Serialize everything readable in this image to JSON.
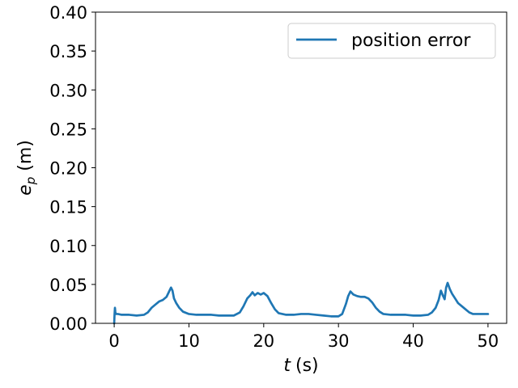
{
  "chart_data": {
    "type": "line",
    "xlabel_var": "t",
    "xlabel_unit": "(s)",
    "ylabel_var": "e",
    "ylabel_sub": "p",
    "ylabel_unit": "(m)",
    "xlim": [
      -2.5,
      52.5
    ],
    "ylim": [
      0.0,
      0.4
    ],
    "xticks": [
      0,
      10,
      20,
      30,
      40,
      50
    ],
    "xtick_labels": [
      "0",
      "10",
      "20",
      "30",
      "40",
      "50"
    ],
    "yticks": [
      0.0,
      0.05,
      0.1,
      0.15,
      0.2,
      0.25,
      0.3,
      0.35,
      0.4
    ],
    "ytick_labels": [
      "0.00",
      "0.05",
      "0.10",
      "0.15",
      "0.20",
      "0.25",
      "0.30",
      "0.35",
      "0.40"
    ],
    "grid": false,
    "legend_position": "top-right",
    "series": [
      {
        "name": "position error",
        "color": "#1f77b4",
        "x": [
          0,
          0.05,
          0.1,
          0.15,
          0.2,
          0.3,
          0.5,
          1,
          2,
          3,
          4,
          4.5,
          5,
          5.5,
          6,
          6.5,
          7,
          7.3,
          7.6,
          7.8,
          8,
          8.3,
          8.7,
          9.2,
          10,
          11,
          12,
          13,
          14,
          15,
          16,
          16.8,
          17.3,
          17.8,
          18.2,
          18.5,
          18.8,
          19.2,
          19.6,
          20,
          20.5,
          21,
          21.5,
          22,
          23,
          24,
          25,
          26,
          27,
          28,
          29,
          29.5,
          30,
          30.5,
          31,
          31.3,
          31.6,
          32,
          32.5,
          33,
          33.5,
          34,
          34.5,
          35,
          35.5,
          36,
          37,
          38,
          39,
          40,
          41,
          42,
          42.5,
          43,
          43.4,
          43.7,
          44,
          44.2,
          44.4,
          44.6,
          44.9,
          45.2,
          45.6,
          46,
          46.5,
          47,
          47.5,
          48,
          49,
          50
        ],
        "y": [
          0.0,
          0.012,
          0.02,
          0.015,
          0.012,
          0.012,
          0.012,
          0.011,
          0.011,
          0.01,
          0.011,
          0.014,
          0.02,
          0.024,
          0.028,
          0.03,
          0.034,
          0.04,
          0.046,
          0.042,
          0.032,
          0.026,
          0.02,
          0.015,
          0.012,
          0.011,
          0.011,
          0.011,
          0.01,
          0.01,
          0.01,
          0.014,
          0.022,
          0.032,
          0.036,
          0.04,
          0.036,
          0.039,
          0.037,
          0.039,
          0.035,
          0.026,
          0.018,
          0.013,
          0.011,
          0.011,
          0.012,
          0.012,
          0.011,
          0.01,
          0.009,
          0.009,
          0.009,
          0.012,
          0.025,
          0.035,
          0.041,
          0.037,
          0.035,
          0.034,
          0.034,
          0.032,
          0.027,
          0.02,
          0.015,
          0.012,
          0.011,
          0.011,
          0.011,
          0.01,
          0.01,
          0.011,
          0.014,
          0.02,
          0.03,
          0.042,
          0.035,
          0.031,
          0.046,
          0.052,
          0.044,
          0.038,
          0.032,
          0.026,
          0.022,
          0.018,
          0.014,
          0.012,
          0.012,
          0.012
        ]
      }
    ]
  }
}
